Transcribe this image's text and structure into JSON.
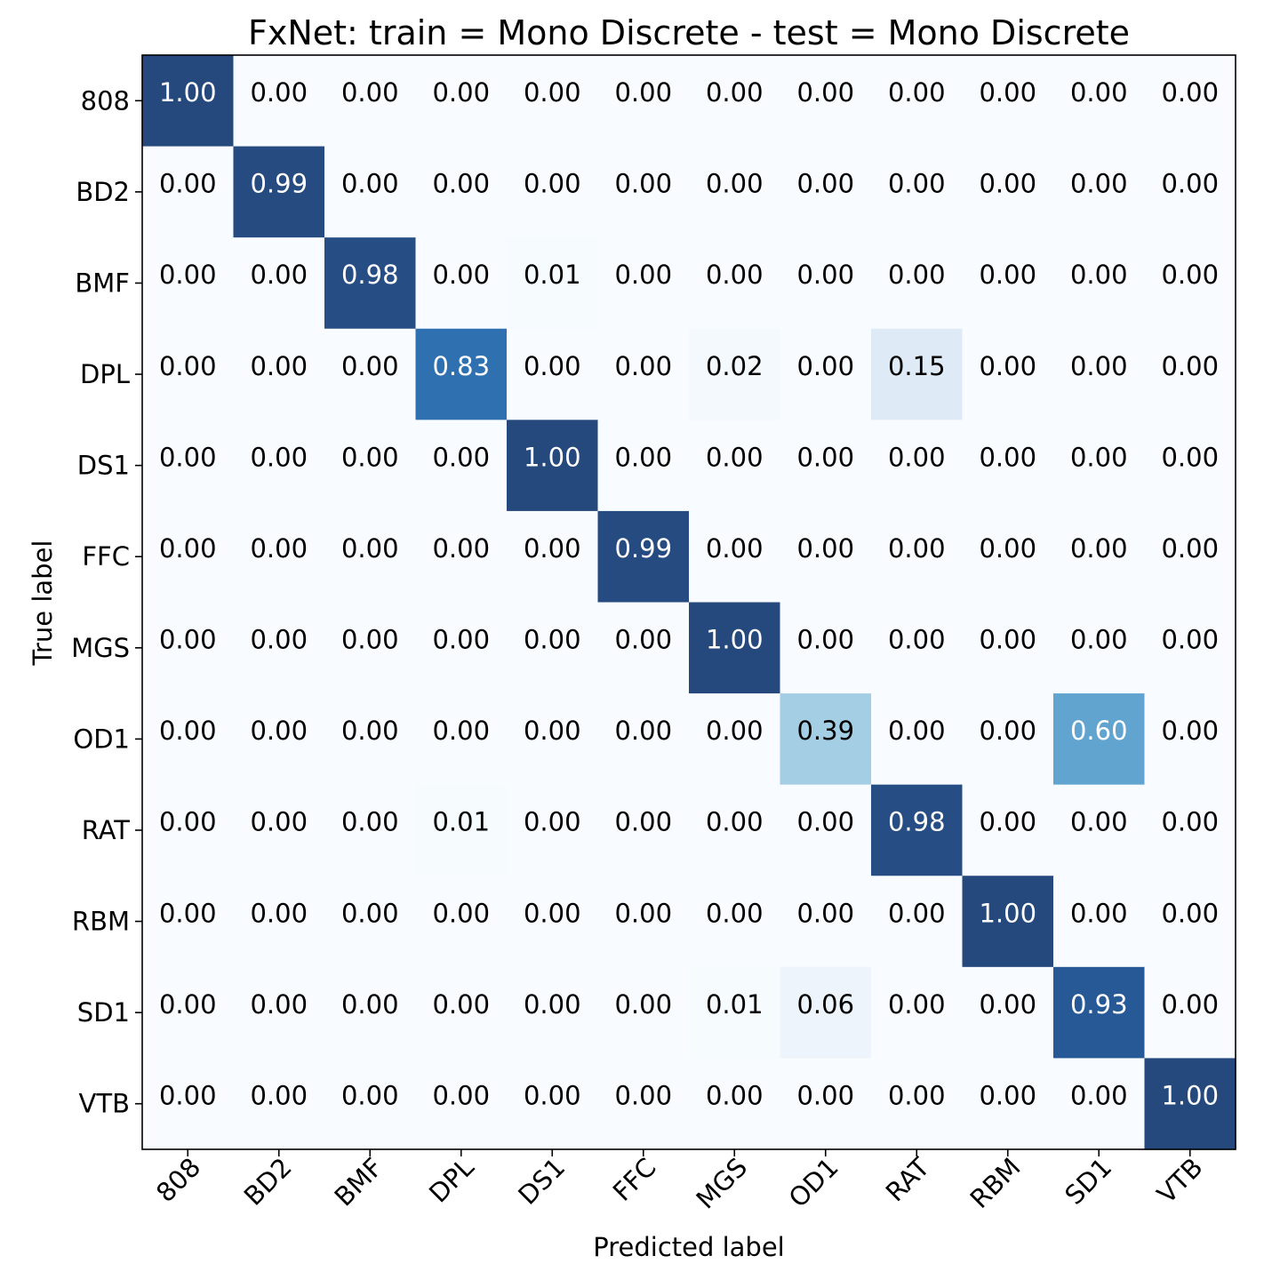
{
  "chart_data": {
    "type": "heatmap",
    "title": "FxNet: train = Mono Discrete - test = Mono Discrete",
    "xlabel": "Predicted label",
    "ylabel": "True label",
    "x_categories": [
      "808",
      "BD2",
      "BMF",
      "DPL",
      "DS1",
      "FFC",
      "MGS",
      "OD1",
      "RAT",
      "RBM",
      "SD1",
      "VTB"
    ],
    "y_categories": [
      "808",
      "BD2",
      "BMF",
      "DPL",
      "DS1",
      "FFC",
      "MGS",
      "OD1",
      "RAT",
      "RBM",
      "SD1",
      "VTB"
    ],
    "values": [
      [
        1.0,
        0.0,
        0.0,
        0.0,
        0.0,
        0.0,
        0.0,
        0.0,
        0.0,
        0.0,
        0.0,
        0.0
      ],
      [
        0.0,
        0.99,
        0.0,
        0.0,
        0.0,
        0.0,
        0.0,
        0.0,
        0.0,
        0.0,
        0.0,
        0.0
      ],
      [
        0.0,
        0.0,
        0.98,
        0.0,
        0.01,
        0.0,
        0.0,
        0.0,
        0.0,
        0.0,
        0.0,
        0.0
      ],
      [
        0.0,
        0.0,
        0.0,
        0.83,
        0.0,
        0.0,
        0.02,
        0.0,
        0.15,
        0.0,
        0.0,
        0.0
      ],
      [
        0.0,
        0.0,
        0.0,
        0.0,
        1.0,
        0.0,
        0.0,
        0.0,
        0.0,
        0.0,
        0.0,
        0.0
      ],
      [
        0.0,
        0.0,
        0.0,
        0.0,
        0.0,
        0.99,
        0.0,
        0.0,
        0.0,
        0.0,
        0.0,
        0.0
      ],
      [
        0.0,
        0.0,
        0.0,
        0.0,
        0.0,
        0.0,
        1.0,
        0.0,
        0.0,
        0.0,
        0.0,
        0.0
      ],
      [
        0.0,
        0.0,
        0.0,
        0.0,
        0.0,
        0.0,
        0.0,
        0.39,
        0.0,
        0.0,
        0.6,
        0.0
      ],
      [
        0.0,
        0.0,
        0.0,
        0.01,
        0.0,
        0.0,
        0.0,
        0.0,
        0.98,
        0.0,
        0.0,
        0.0
      ],
      [
        0.0,
        0.0,
        0.0,
        0.0,
        0.0,
        0.0,
        0.0,
        0.0,
        0.0,
        1.0,
        0.0,
        0.0
      ],
      [
        0.0,
        0.0,
        0.0,
        0.0,
        0.0,
        0.0,
        0.01,
        0.06,
        0.0,
        0.0,
        0.93,
        0.0
      ],
      [
        0.0,
        0.0,
        0.0,
        0.0,
        0.0,
        0.0,
        0.0,
        0.0,
        0.0,
        0.0,
        0.0,
        1.0
      ]
    ],
    "value_range": [
      0,
      1
    ],
    "colormap": "Blues",
    "grid": false,
    "x_tick_rotation": 45
  }
}
